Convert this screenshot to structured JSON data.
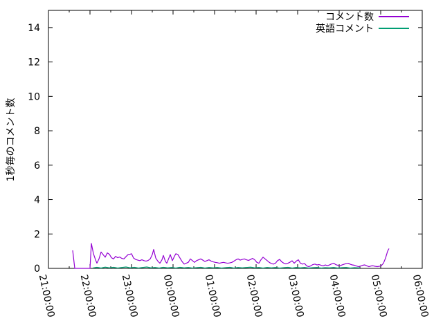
{
  "chart_data": {
    "type": "line",
    "title": "",
    "xlabel": "",
    "ylabel": "1秒毎のコメント数",
    "x_unit": "minutes since 21:00:00",
    "xlim": [
      0,
      540
    ],
    "ylim": [
      0,
      15
    ],
    "grid": false,
    "legend_position": "top-right-inside",
    "x_tick_labels": [
      "21:00:00",
      "22:00:00",
      "23:00:00",
      "00:00:00",
      "01:00:00",
      "02:00:00",
      "03:00:00",
      "04:00:00",
      "05:00:00",
      "06:00:00"
    ],
    "x_tick_minutes": [
      0,
      60,
      120,
      180,
      240,
      300,
      360,
      420,
      480,
      540
    ],
    "x_minor_tick_minutes": [
      30,
      90,
      150,
      210,
      270,
      330,
      390,
      450,
      510
    ],
    "y_ticks": [
      0,
      2,
      4,
      6,
      8,
      10,
      12,
      14
    ],
    "colors": {
      "background": "#ffffff",
      "axis": "#000000",
      "text": "#000000"
    },
    "series": [
      {
        "name": "コメント数",
        "color": "#9400d3",
        "points": [
          [
            35,
            1.05
          ],
          [
            38,
            0
          ],
          [
            45,
            0
          ],
          [
            52,
            0
          ],
          [
            60,
            0
          ],
          [
            62,
            1.45
          ],
          [
            65,
            0.85
          ],
          [
            68,
            0.5
          ],
          [
            70,
            0.3
          ],
          [
            73,
            0.55
          ],
          [
            76,
            0.95
          ],
          [
            79,
            0.8
          ],
          [
            82,
            0.65
          ],
          [
            85,
            0.9
          ],
          [
            88,
            0.82
          ],
          [
            91,
            0.62
          ],
          [
            94,
            0.55
          ],
          [
            97,
            0.7
          ],
          [
            100,
            0.62
          ],
          [
            103,
            0.66
          ],
          [
            106,
            0.58
          ],
          [
            109,
            0.55
          ],
          [
            112,
            0.68
          ],
          [
            115,
            0.8
          ],
          [
            118,
            0.82
          ],
          [
            120,
            0.85
          ],
          [
            123,
            0.6
          ],
          [
            126,
            0.52
          ],
          [
            129,
            0.48
          ],
          [
            132,
            0.45
          ],
          [
            135,
            0.5
          ],
          [
            138,
            0.45
          ],
          [
            141,
            0.42
          ],
          [
            144,
            0.46
          ],
          [
            147,
            0.55
          ],
          [
            150,
            0.8
          ],
          [
            152,
            1.1
          ],
          [
            155,
            0.6
          ],
          [
            158,
            0.42
          ],
          [
            161,
            0.3
          ],
          [
            164,
            0.5
          ],
          [
            166,
            0.75
          ],
          [
            169,
            0.4
          ],
          [
            171,
            0.3
          ],
          [
            174,
            0.6
          ],
          [
            176,
            0.8
          ],
          [
            179,
            0.45
          ],
          [
            182,
            0.7
          ],
          [
            184,
            0.85
          ],
          [
            187,
            0.8
          ],
          [
            190,
            0.6
          ],
          [
            193,
            0.4
          ],
          [
            196,
            0.25
          ],
          [
            199,
            0.3
          ],
          [
            202,
            0.35
          ],
          [
            205,
            0.55
          ],
          [
            208,
            0.45
          ],
          [
            211,
            0.35
          ],
          [
            214,
            0.45
          ],
          [
            217,
            0.5
          ],
          [
            220,
            0.55
          ],
          [
            223,
            0.48
          ],
          [
            226,
            0.4
          ],
          [
            229,
            0.45
          ],
          [
            232,
            0.5
          ],
          [
            235,
            0.42
          ],
          [
            238,
            0.38
          ],
          [
            241,
            0.35
          ],
          [
            244,
            0.33
          ],
          [
            247,
            0.3
          ],
          [
            250,
            0.33
          ],
          [
            253,
            0.35
          ],
          [
            256,
            0.32
          ],
          [
            259,
            0.3
          ],
          [
            262,
            0.32
          ],
          [
            265,
            0.35
          ],
          [
            268,
            0.42
          ],
          [
            271,
            0.5
          ],
          [
            274,
            0.55
          ],
          [
            277,
            0.48
          ],
          [
            280,
            0.52
          ],
          [
            283,
            0.55
          ],
          [
            286,
            0.5
          ],
          [
            289,
            0.46
          ],
          [
            292,
            0.52
          ],
          [
            295,
            0.58
          ],
          [
            298,
            0.5
          ],
          [
            301,
            0.35
          ],
          [
            304,
            0.3
          ],
          [
            307,
            0.5
          ],
          [
            310,
            0.65
          ],
          [
            313,
            0.55
          ],
          [
            316,
            0.45
          ],
          [
            319,
            0.35
          ],
          [
            322,
            0.28
          ],
          [
            325,
            0.25
          ],
          [
            328,
            0.3
          ],
          [
            331,
            0.45
          ],
          [
            334,
            0.52
          ],
          [
            337,
            0.38
          ],
          [
            340,
            0.3
          ],
          [
            343,
            0.26
          ],
          [
            346,
            0.3
          ],
          [
            349,
            0.36
          ],
          [
            352,
            0.44
          ],
          [
            355,
            0.3
          ],
          [
            358,
            0.42
          ],
          [
            361,
            0.5
          ],
          [
            364,
            0.3
          ],
          [
            367,
            0.25
          ],
          [
            370,
            0.28
          ],
          [
            373,
            0.15
          ],
          [
            376,
            0.1
          ],
          [
            379,
            0.15
          ],
          [
            382,
            0.22
          ],
          [
            385,
            0.25
          ],
          [
            388,
            0.2
          ],
          [
            391,
            0.22
          ],
          [
            394,
            0.18
          ],
          [
            397,
            0.15
          ],
          [
            400,
            0.2
          ],
          [
            403,
            0.16
          ],
          [
            406,
            0.2
          ],
          [
            409,
            0.26
          ],
          [
            412,
            0.3
          ],
          [
            415,
            0.22
          ],
          [
            418,
            0.18
          ],
          [
            421,
            0.15
          ],
          [
            424,
            0.2
          ],
          [
            427,
            0.24
          ],
          [
            430,
            0.28
          ],
          [
            433,
            0.3
          ],
          [
            436,
            0.24
          ],
          [
            439,
            0.2
          ],
          [
            442,
            0.18
          ],
          [
            445,
            0.14
          ],
          [
            448,
            0.1
          ],
          [
            451,
            0.14
          ],
          [
            454,
            0.18
          ],
          [
            457,
            0.2
          ],
          [
            460,
            0.15
          ],
          [
            463,
            0.1
          ],
          [
            466,
            0.14
          ],
          [
            469,
            0.15
          ],
          [
            472,
            0.12
          ],
          [
            475,
            0.1
          ],
          [
            478,
            0.12
          ],
          [
            481,
            0.16
          ],
          [
            484,
            0.3
          ],
          [
            487,
            0.6
          ],
          [
            490,
            1.0
          ],
          [
            492,
            1.15
          ]
        ]
      },
      {
        "name": "英語コメント",
        "color": "#009e73",
        "points": [
          [
            64,
            0.02
          ],
          [
            70,
            0.06
          ],
          [
            76,
            0.02
          ],
          [
            82,
            0.07
          ],
          [
            88,
            0.03
          ],
          [
            94,
            0.06
          ],
          [
            100,
            0.02
          ],
          [
            106,
            0.05
          ],
          [
            112,
            0.08
          ],
          [
            118,
            0.03
          ],
          [
            124,
            0.06
          ],
          [
            130,
            0.02
          ],
          [
            136,
            0.05
          ],
          [
            142,
            0.08
          ],
          [
            148,
            0.03
          ],
          [
            154,
            0.05
          ],
          [
            160,
            0.02
          ],
          [
            166,
            0.06
          ],
          [
            172,
            0.03
          ],
          [
            178,
            0.05
          ],
          [
            184,
            0.02
          ],
          [
            190,
            0.06
          ],
          [
            196,
            0.03
          ],
          [
            202,
            0.05
          ],
          [
            208,
            0.02
          ],
          [
            214,
            0.04
          ],
          [
            220,
            0.06
          ],
          [
            226,
            0.02
          ],
          [
            232,
            0.05
          ],
          [
            238,
            0.03
          ],
          [
            244,
            0.05
          ],
          [
            250,
            0.02
          ],
          [
            256,
            0.04
          ],
          [
            262,
            0.06
          ],
          [
            268,
            0.02
          ],
          [
            274,
            0.05
          ],
          [
            280,
            0.03
          ],
          [
            286,
            0.05
          ],
          [
            292,
            0.07
          ],
          [
            298,
            0.03
          ],
          [
            304,
            0.05
          ],
          [
            310,
            0.02
          ],
          [
            316,
            0.05
          ],
          [
            322,
            0.03
          ],
          [
            328,
            0.05
          ],
          [
            334,
            0.02
          ],
          [
            340,
            0.04
          ],
          [
            346,
            0.06
          ],
          [
            352,
            0.02
          ],
          [
            358,
            0.05
          ],
          [
            364,
            0.03
          ],
          [
            370,
            0.05
          ],
          [
            376,
            0.02
          ],
          [
            382,
            0.04
          ],
          [
            388,
            0.05
          ],
          [
            394,
            0.02
          ],
          [
            400,
            0.04
          ],
          [
            406,
            0.03
          ],
          [
            412,
            0.05
          ],
          [
            418,
            0.02
          ],
          [
            424,
            0.04
          ],
          [
            430,
            0.05
          ],
          [
            436,
            0.02
          ],
          [
            442,
            0.04
          ],
          [
            448,
            0.03
          ],
          [
            450,
            0.02
          ]
        ]
      }
    ]
  }
}
